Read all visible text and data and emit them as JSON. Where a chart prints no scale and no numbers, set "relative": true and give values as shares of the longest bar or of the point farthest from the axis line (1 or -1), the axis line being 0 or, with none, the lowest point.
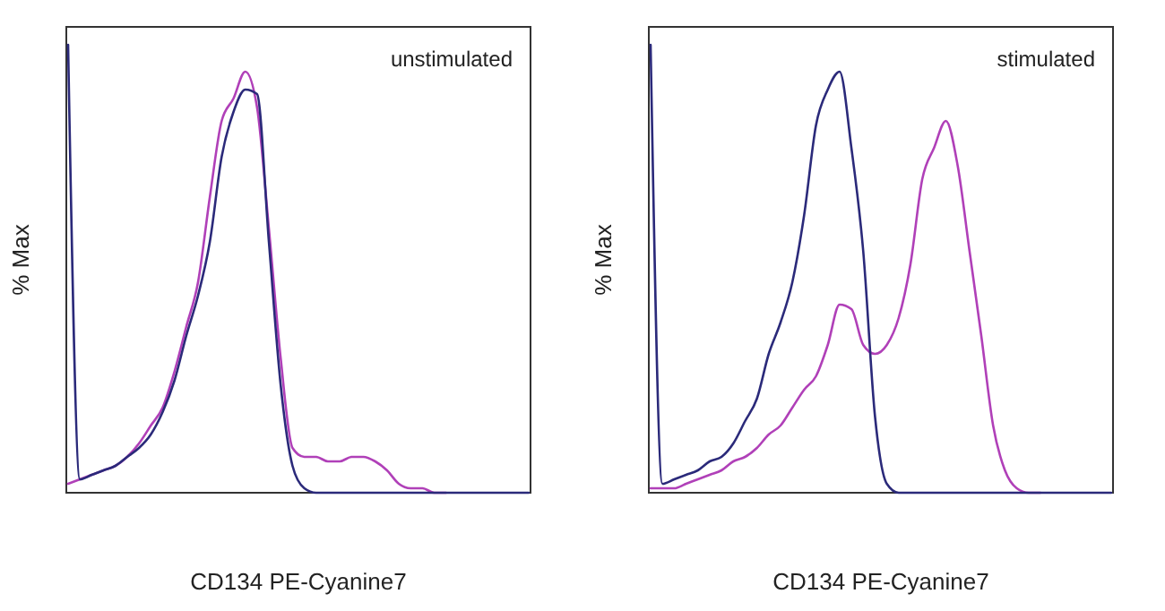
{
  "chart_data": [
    {
      "type": "line",
      "relative": true,
      "xlabel": "CD134 PE-Cyanine7",
      "ylabel": "% Max",
      "annotations": [
        "unstimulated"
      ],
      "categories": [
        null,
        null,
        null,
        null,
        null,
        null,
        null,
        null,
        null,
        null,
        null,
        null,
        null,
        null,
        null,
        null,
        null,
        null,
        null,
        null,
        null,
        null,
        null,
        null,
        null,
        null,
        null,
        null,
        null,
        null,
        null,
        null,
        null,
        null,
        null,
        null,
        null,
        null,
        null,
        null
      ],
      "series": [
        {
          "color": "#b040b8",
          "values": [
            0.02,
            0.03,
            0.04,
            0.05,
            0.06,
            0.08,
            0.11,
            0.15,
            0.19,
            0.27,
            0.37,
            0.47,
            0.66,
            0.83,
            0.88,
            0.94,
            0.86,
            0.59,
            0.3,
            0.1,
            0.08,
            0.08,
            0.07,
            0.07,
            0.08,
            0.08,
            0.07,
            0.05,
            0.02,
            0.01,
            0.01,
            0,
            0,
            null,
            null,
            null,
            null,
            null,
            null,
            null
          ]
        },
        {
          "color": "#2b2a7a",
          "values": [
            1,
            0.03,
            0.04,
            0.05,
            0.06,
            0.08,
            0.1,
            0.13,
            0.18,
            0.25,
            0.35,
            0.44,
            0.56,
            0.75,
            0.85,
            0.9,
            0.89,
            0.56,
            0.24,
            0.06,
            0.01,
            0,
            0,
            0,
            0,
            0,
            0,
            0,
            0,
            0,
            0,
            0,
            0,
            0,
            0,
            0,
            0,
            0,
            0,
            0
          ]
        }
      ]
    },
    {
      "type": "line",
      "relative": true,
      "xlabel": "CD134 PE-Cyanine7",
      "ylabel": "% Max",
      "annotations": [
        "stimulated"
      ],
      "categories": [
        null,
        null,
        null,
        null,
        null,
        null,
        null,
        null,
        null,
        null,
        null,
        null,
        null,
        null,
        null,
        null,
        null,
        null,
        null,
        null,
        null,
        null,
        null,
        null,
        null,
        null,
        null,
        null,
        null,
        null,
        null,
        null,
        null,
        null,
        null,
        null,
        null,
        null,
        null,
        null
      ],
      "series": [
        {
          "color": "#b040b8",
          "values": [
            0.01,
            0.01,
            0.01,
            0.02,
            0.03,
            0.04,
            0.05,
            0.07,
            0.08,
            0.1,
            0.13,
            0.15,
            0.19,
            0.23,
            0.26,
            0.33,
            0.42,
            0.41,
            0.33,
            0.31,
            0.33,
            0.39,
            0.51,
            0.7,
            0.77,
            0.83,
            0.73,
            0.54,
            0.35,
            0.15,
            0.05,
            0.01,
            0,
            0,
            null,
            null,
            null,
            null,
            null,
            null
          ]
        },
        {
          "color": "#2b2a7a",
          "values": [
            1,
            0.02,
            0.03,
            0.04,
            0.05,
            0.07,
            0.08,
            0.11,
            0.16,
            0.21,
            0.31,
            0.38,
            0.47,
            0.62,
            0.82,
            0.9,
            0.94,
            0.77,
            0.54,
            0.17,
            0.02,
            0,
            0,
            0,
            0,
            0,
            0,
            0,
            0,
            0,
            0,
            0,
            0,
            0,
            0,
            0,
            0,
            0,
            0,
            0
          ]
        }
      ]
    }
  ]
}
